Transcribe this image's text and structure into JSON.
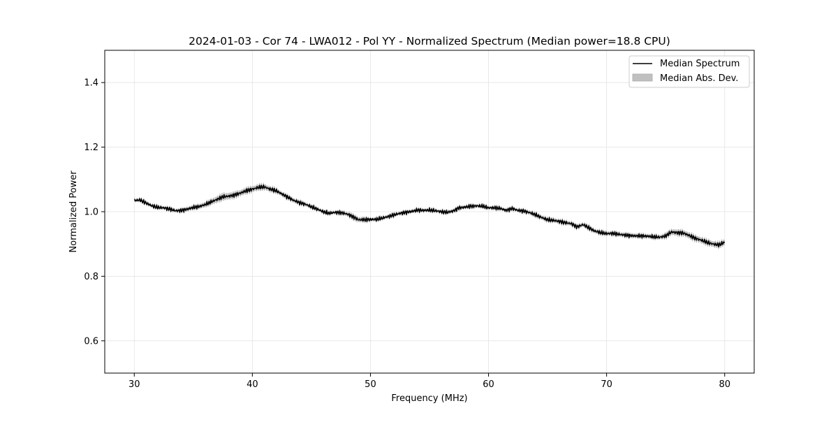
{
  "chart_data": {
    "type": "line",
    "title": "2024-01-03 - Cor 74 - LWA012 - Pol YY - Normalized Spectrum (Median power=18.8 CPU)",
    "xlabel": "Frequency (MHz)",
    "ylabel": "Normalized Power",
    "xlim": [
      27.5,
      82.5
    ],
    "ylim": [
      0.5,
      1.5
    ],
    "xticks": [
      30,
      40,
      50,
      60,
      70,
      80
    ],
    "yticks": [
      0.6,
      0.8,
      1.0,
      1.2,
      1.4
    ],
    "xtick_labels": [
      "30",
      "40",
      "50",
      "60",
      "70",
      "80"
    ],
    "ytick_labels": [
      "0.6",
      "0.8",
      "1.0",
      "1.2",
      "1.4"
    ],
    "grid": true,
    "legend_position": "top-right",
    "colors": {
      "line": "#000000",
      "band": "#c0c0c0",
      "grid": "#e3e3e3"
    },
    "series": [
      {
        "name": "Median Spectrum",
        "kind": "line",
        "x": [
          30,
          30.5,
          31,
          31.5,
          32,
          32.5,
          33,
          33.5,
          34,
          34.5,
          35,
          35.5,
          36,
          36.5,
          37,
          37.5,
          38,
          38.5,
          39,
          39.5,
          40,
          40.5,
          41,
          41.5,
          42,
          42.5,
          43,
          43.5,
          44,
          44.5,
          45,
          45.5,
          46,
          46.5,
          47,
          47.5,
          48,
          48.5,
          49,
          49.5,
          50,
          50.5,
          51,
          51.5,
          52,
          52.5,
          53,
          53.5,
          54,
          54.5,
          55,
          55.5,
          56,
          56.5,
          57,
          57.5,
          58,
          58.5,
          59,
          59.5,
          60,
          60.5,
          61,
          61.5,
          62,
          62.5,
          63,
          63.5,
          64,
          64.5,
          65,
          65.5,
          66,
          66.5,
          67,
          67.5,
          68,
          68.5,
          69,
          69.5,
          70,
          70.5,
          71,
          71.5,
          72,
          72.5,
          73,
          73.5,
          74,
          74.5,
          75,
          75.5,
          76,
          76.5,
          77,
          77.5,
          78,
          78.5,
          79,
          79.5,
          80
        ],
        "y": [
          1.035,
          1.036,
          1.027,
          1.018,
          1.013,
          1.012,
          1.008,
          1.003,
          1.004,
          1.008,
          1.013,
          1.016,
          1.022,
          1.03,
          1.038,
          1.046,
          1.048,
          1.052,
          1.058,
          1.065,
          1.07,
          1.075,
          1.077,
          1.07,
          1.065,
          1.055,
          1.045,
          1.035,
          1.028,
          1.023,
          1.015,
          1.008,
          1.0,
          0.995,
          0.998,
          0.997,
          0.993,
          0.985,
          0.975,
          0.975,
          0.976,
          0.976,
          0.98,
          0.985,
          0.99,
          0.995,
          0.998,
          1.001,
          1.005,
          1.004,
          1.005,
          1.003,
          1.0,
          0.998,
          1.002,
          1.012,
          1.014,
          1.017,
          1.018,
          1.017,
          1.012,
          1.012,
          1.01,
          1.004,
          1.01,
          1.004,
          1.002,
          0.997,
          0.99,
          0.982,
          0.975,
          0.973,
          0.97,
          0.966,
          0.963,
          0.953,
          0.96,
          0.95,
          0.94,
          0.935,
          0.932,
          0.933,
          0.93,
          0.928,
          0.926,
          0.925,
          0.925,
          0.924,
          0.922,
          0.921,
          0.925,
          0.937,
          0.935,
          0.934,
          0.926,
          0.918,
          0.912,
          0.905,
          0.9,
          0.897,
          0.905
        ]
      },
      {
        "name": "Median Abs. Dev.",
        "kind": "band",
        "half_width": [
          0.004,
          0.004,
          0.004,
          0.004,
          0.004,
          0.004,
          0.004,
          0.004,
          0.004,
          0.005,
          0.005,
          0.005,
          0.006,
          0.006,
          0.008,
          0.008,
          0.008,
          0.007,
          0.007,
          0.007,
          0.007,
          0.007,
          0.007,
          0.006,
          0.006,
          0.005,
          0.005,
          0.005,
          0.005,
          0.005,
          0.004,
          0.004,
          0.004,
          0.004,
          0.004,
          0.004,
          0.005,
          0.006,
          0.006,
          0.005,
          0.004,
          0.004,
          0.004,
          0.004,
          0.004,
          0.004,
          0.004,
          0.004,
          0.004,
          0.004,
          0.004,
          0.004,
          0.004,
          0.004,
          0.004,
          0.004,
          0.004,
          0.004,
          0.004,
          0.004,
          0.004,
          0.004,
          0.004,
          0.004,
          0.004,
          0.004,
          0.004,
          0.005,
          0.005,
          0.005,
          0.005,
          0.005,
          0.005,
          0.005,
          0.005,
          0.005,
          0.005,
          0.005,
          0.005,
          0.005,
          0.005,
          0.005,
          0.005,
          0.005,
          0.005,
          0.005,
          0.005,
          0.005,
          0.005,
          0.005,
          0.006,
          0.007,
          0.007,
          0.007,
          0.007,
          0.007,
          0.007,
          0.007,
          0.007,
          0.007,
          0.007
        ]
      }
    ]
  }
}
